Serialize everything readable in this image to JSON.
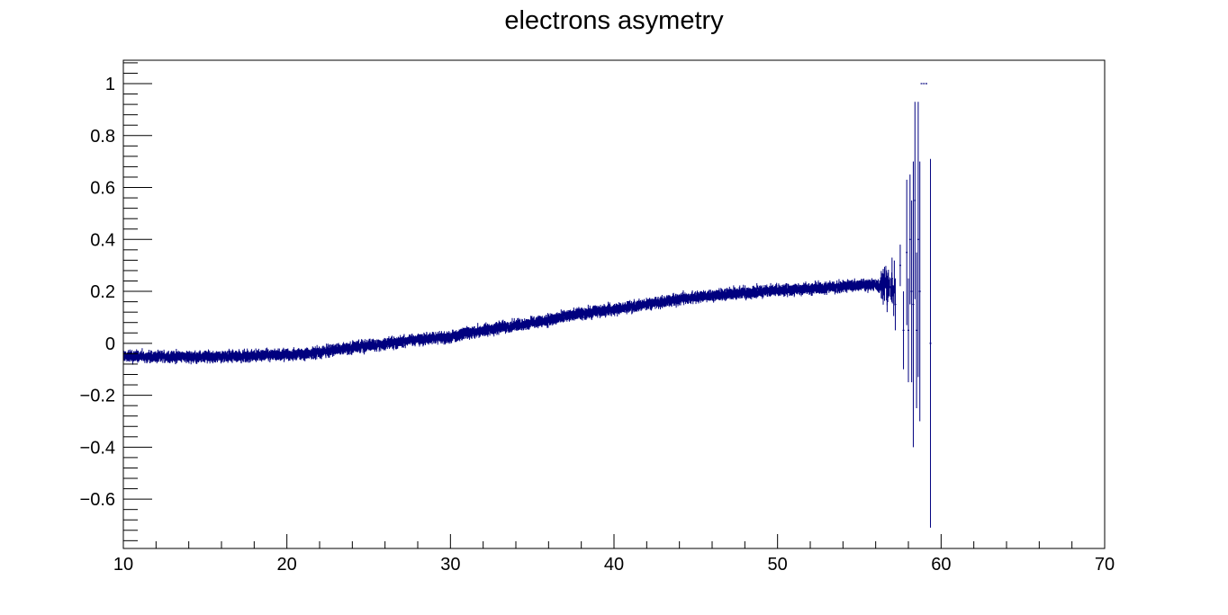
{
  "chart_data": {
    "type": "scatter",
    "title": "electrons asymetry",
    "xlabel": "",
    "ylabel": "",
    "xlim": [
      10,
      70
    ],
    "ylim": [
      -0.79,
      1.09
    ],
    "x_ticks": [
      10,
      20,
      30,
      40,
      50,
      60,
      70
    ],
    "x_tick_labels": [
      "10",
      "20",
      "30",
      "40",
      "50",
      "60",
      "70"
    ],
    "y_ticks": [
      -0.6,
      -0.4,
      -0.2,
      0,
      0.2,
      0.4,
      0.6,
      0.8,
      1
    ],
    "y_tick_labels": [
      "−0.6",
      "−0.4",
      "−0.2",
      "0",
      "0.2",
      "0.4",
      "0.6",
      "0.8",
      "1"
    ],
    "grid": false,
    "legend": "none",
    "series_color": "#00007f",
    "trend_knots": [
      [
        10,
        -0.05
      ],
      [
        12,
        -0.052
      ],
      [
        15,
        -0.052
      ],
      [
        18,
        -0.048
      ],
      [
        20,
        -0.045
      ],
      [
        22,
        -0.035
      ],
      [
        24,
        -0.015
      ],
      [
        26,
        -0.002
      ],
      [
        28,
        0.015
      ],
      [
        30,
        0.025
      ],
      [
        32,
        0.05
      ],
      [
        34,
        0.07
      ],
      [
        36,
        0.09
      ],
      [
        38,
        0.115
      ],
      [
        40,
        0.13
      ],
      [
        42,
        0.15
      ],
      [
        44,
        0.17
      ],
      [
        46,
        0.185
      ],
      [
        48,
        0.195
      ],
      [
        50,
        0.205
      ],
      [
        52,
        0.21
      ],
      [
        54,
        0.22
      ],
      [
        55.5,
        0.225
      ],
      [
        56.5,
        0.22
      ],
      [
        57.5,
        0.2
      ],
      [
        58.8,
        0.2
      ]
    ],
    "noisy_region_points": [
      {
        "x": 56.4,
        "y": 0.22,
        "err": 0.05
      },
      {
        "x": 56.7,
        "y": 0.19,
        "err": 0.07
      },
      {
        "x": 57.0,
        "y": 0.25,
        "err": 0.08
      },
      {
        "x": 57.2,
        "y": 0.15,
        "err": 0.1
      },
      {
        "x": 57.5,
        "y": 0.3,
        "err": 0.08
      },
      {
        "x": 57.7,
        "y": 0.05,
        "err": 0.15
      },
      {
        "x": 57.9,
        "y": 0.35,
        "err": 0.28
      },
      {
        "x": 58.0,
        "y": 0.05,
        "err": 0.2
      },
      {
        "x": 58.1,
        "y": 0.4,
        "err": 0.25
      },
      {
        "x": 58.2,
        "y": 0.2,
        "err": 0.35
      },
      {
        "x": 58.3,
        "y": 0.15,
        "err": 0.55
      },
      {
        "x": 58.4,
        "y": 0.55,
        "err": 0.38
      },
      {
        "x": 58.5,
        "y": 0.05,
        "err": 0.3
      },
      {
        "x": 58.6,
        "y": 0.4,
        "err": 0.53
      },
      {
        "x": 58.7,
        "y": 0.2,
        "err": 0.5
      },
      {
        "x": 58.8,
        "y": 1.0,
        "err": 0.0
      },
      {
        "x": 58.95,
        "y": 1.0,
        "err": 0.0
      },
      {
        "x": 59.1,
        "y": 1.0,
        "err": 0.0
      },
      {
        "x": 59.35,
        "y": 0.0,
        "err": 0.71
      }
    ]
  }
}
